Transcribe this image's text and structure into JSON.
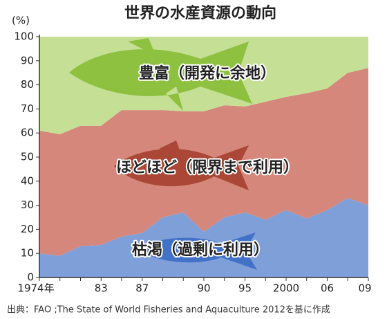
{
  "chart_data": {
    "type": "stacked_area",
    "title": "世界の水産資源の動向",
    "y_label": "(%)",
    "source": "出典：FAO ;The State of World Fisheries and Aquaculture 2012を基に作成",
    "categories": [
      "1974年",
      null,
      null,
      "83",
      null,
      "87",
      null,
      null,
      "90",
      null,
      "95",
      null,
      "2000",
      null,
      "06",
      null,
      "09"
    ],
    "series": [
      {
        "name": "枯渇（過剰に利用）",
        "color": "#7f9fd8",
        "values": [
          10,
          9,
          13,
          13.5,
          17,
          18.5,
          25,
          27,
          19,
          25,
          27,
          24,
          28,
          24.5,
          28,
          33,
          30
        ]
      },
      {
        "name": "ほどほど（限界まで利用）",
        "color": "#d4877a",
        "values": [
          51,
          50.5,
          50,
          49.5,
          52.5,
          51,
          44.5,
          42,
          50,
          46.5,
          44,
          49,
          47,
          52,
          50.5,
          52,
          57
        ]
      },
      {
        "name": "豊富（開発に余地）",
        "color": "#c5df95",
        "values": [
          39,
          40.5,
          37,
          37,
          30.5,
          30.5,
          30.5,
          31,
          31,
          28.5,
          29,
          27,
          25,
          23.5,
          21.5,
          15,
          13
        ]
      }
    ],
    "ylim": [
      0,
      100
    ],
    "yticks": [
      0,
      10,
      20,
      30,
      40,
      50,
      60,
      70,
      80,
      90,
      100
    ]
  }
}
